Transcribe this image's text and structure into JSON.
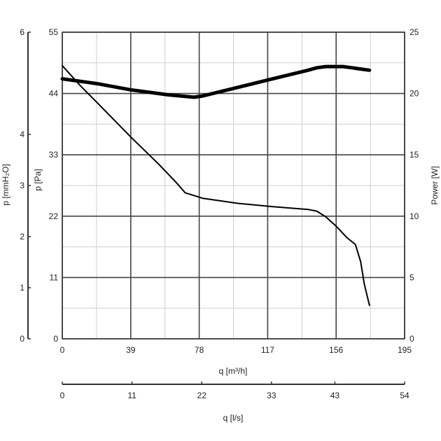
{
  "chart_data": {
    "type": "line",
    "x_primary": {
      "label": "q [m³/h]",
      "range": [
        0,
        195
      ],
      "ticks": [
        0,
        39,
        78,
        117,
        156,
        195
      ]
    },
    "x_secondary": {
      "label": "q [l/s]",
      "range": [
        0,
        54
      ],
      "ticks": [
        0,
        11,
        22,
        33,
        43,
        54
      ]
    },
    "y_outer_left": {
      "label": "p [mmH₂O]",
      "range": [
        0,
        6
      ],
      "ticks": [
        0,
        1,
        2,
        3,
        4,
        6
      ]
    },
    "y_left": {
      "label": "p [Pa]",
      "range": [
        0,
        55
      ],
      "ticks": [
        0,
        11,
        22,
        33,
        44,
        55
      ]
    },
    "y_right": {
      "label": "Power [W]",
      "range": [
        0,
        25
      ],
      "ticks": [
        0,
        5,
        10,
        15,
        20,
        25
      ]
    },
    "grid": true,
    "series": [
      {
        "axis": "y_left",
        "style": "thin",
        "x": [
          0,
          10,
          20,
          39,
          55,
          65,
          70,
          75,
          80,
          100,
          120,
          140,
          145,
          150,
          156,
          162,
          167,
          170,
          172,
          175
        ],
        "y": [
          49,
          45.5,
          42.3,
          36.2,
          31.3,
          28.0,
          26.2,
          25.7,
          25.2,
          24.3,
          23.7,
          23.2,
          22.9,
          21.9,
          20.2,
          18.2,
          16.9,
          13.8,
          9.9,
          6.0
        ]
      },
      {
        "axis": "y_right",
        "style": "thick",
        "x": [
          0,
          20,
          39,
          60,
          75,
          80,
          100,
          117,
          140,
          145,
          150,
          160,
          165,
          170,
          175
        ],
        "y": [
          21.2,
          20.8,
          20.3,
          19.9,
          19.7,
          19.8,
          20.5,
          21.1,
          21.9,
          22.1,
          22.2,
          22.2,
          22.1,
          22.0,
          21.9
        ]
      }
    ]
  }
}
